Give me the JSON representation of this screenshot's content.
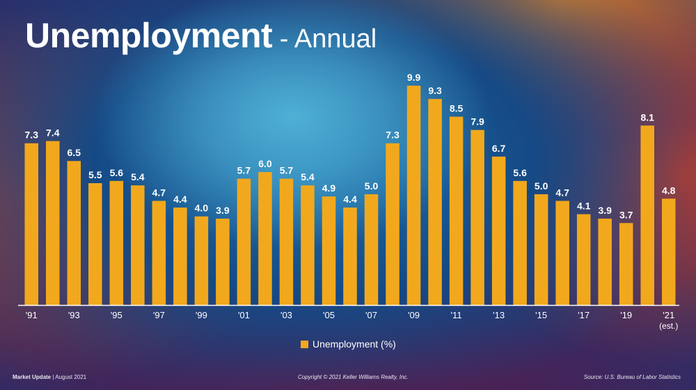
{
  "title": {
    "main": "Unemployment",
    "sub": " - Annual"
  },
  "chart_data": {
    "type": "bar",
    "categories": [
      "1991",
      "1992",
      "1993",
      "1994",
      "1995",
      "1996",
      "1997",
      "1998",
      "1999",
      "2000",
      "2001",
      "2002",
      "2003",
      "2004",
      "2005",
      "2006",
      "2007",
      "2008",
      "2009",
      "2010",
      "2011",
      "2012",
      "2013",
      "2014",
      "2015",
      "2016",
      "2017",
      "2018",
      "2019",
      "2020",
      "2021"
    ],
    "tick_labels": [
      "'91",
      "",
      "'93",
      "",
      "'95",
      "",
      "'97",
      "",
      "'99",
      "",
      "'01",
      "",
      "'03",
      "",
      "'05",
      "",
      "'07",
      "",
      "'09",
      "",
      "'11",
      "",
      "'13",
      "",
      "'15",
      "",
      "'17",
      "",
      "'19",
      "",
      "'21"
    ],
    "tick_sublabels": [
      "",
      "",
      "",
      "",
      "",
      "",
      "",
      "",
      "",
      "",
      "",
      "",
      "",
      "",
      "",
      "",
      "",
      "",
      "",
      "",
      "",
      "",
      "",
      "",
      "",
      "",
      "",
      "",
      "",
      "",
      "(est.)"
    ],
    "series": [
      {
        "name": "Unemployment (%)",
        "values": [
          7.3,
          7.4,
          6.5,
          5.5,
          5.6,
          5.4,
          4.7,
          4.4,
          4.0,
          3.9,
          5.7,
          6.0,
          5.7,
          5.4,
          4.9,
          4.4,
          5.0,
          7.3,
          9.9,
          9.3,
          8.5,
          7.9,
          6.7,
          5.6,
          5.0,
          4.7,
          4.1,
          3.9,
          3.7,
          8.1,
          4.8
        ],
        "value_labels": [
          "7.3",
          "7.4",
          "6.5",
          "5.5",
          "5.6",
          "5.4",
          "4.7",
          "4.4",
          "4.0",
          "3.9",
          "5.7",
          "6.0",
          "5.7",
          "5.4",
          "4.9",
          "4.4",
          "5.0",
          "7.3",
          "9.9",
          "9.3",
          "8.5",
          "7.9",
          "6.7",
          "5.6",
          "5.0",
          "4.7",
          "4.1",
          "3.9",
          "3.7",
          "8.1",
          "4.8"
        ]
      }
    ],
    "ylim": [
      0,
      10
    ],
    "grid": false,
    "legend_position": "bottom-center",
    "colors": {
      "bar": "#f2a81d",
      "axis": "#ffffff",
      "text": "#ffffff"
    }
  },
  "footer": {
    "left_strong": "Market Update",
    "left_rest": " | August 2021",
    "center": "Copyright © 2021 Keller Williams Realty, Inc.",
    "right": "Source: U.S. Bureau of Labor Statistics"
  }
}
